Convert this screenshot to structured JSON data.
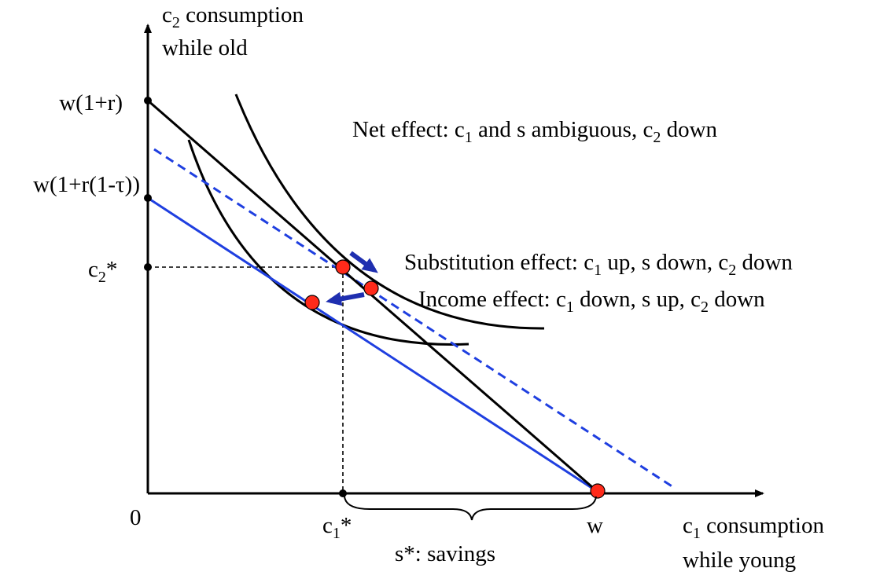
{
  "axes": {
    "y_label_line1_base": "c",
    "y_label_line1_sub": "2",
    "y_label_line1_rest": " consumption",
    "y_label_line2": "while old",
    "x_label_line1_base": "c",
    "x_label_line1_sub": "1",
    "x_label_line1_rest": " consumption",
    "x_label_line2": "while young",
    "origin_label": "0"
  },
  "y_ticks": {
    "w_1_plus_r": "w(1+r)",
    "w_taxed": "w(1+r(1-τ))",
    "c2_star_base": "c",
    "c2_star_sub": "2",
    "c2_star_rest": "*"
  },
  "x_ticks": {
    "c1_star_base": "c",
    "c1_star_sub": "1",
    "c1_star_rest": "*",
    "w": "w"
  },
  "savings_label": "s*: savings",
  "annotations": {
    "net": {
      "p1": "Net effect: c",
      "s1": "1",
      "p2": " and s ambiguous, c",
      "s2": "2",
      "p3": " down"
    },
    "substitution": {
      "p1": "Substitution effect: c",
      "s1": "1",
      "p2": " up, s down, c",
      "s2": "2",
      "p3": " down"
    },
    "income": {
      "p1": "Income effect: c",
      "s1": "1",
      "p2": " down, s up, c",
      "s2": "2",
      "p3": " down"
    }
  },
  "colors": {
    "axis": "#000000",
    "original_budget": "#000000",
    "taxed_budget": "#1f3fe0",
    "compensated_budget": "#1f3fe0",
    "indifference_curve": "#000000",
    "optimum_point": "#ff2a1a",
    "arrow": "#1f2fb0"
  }
}
